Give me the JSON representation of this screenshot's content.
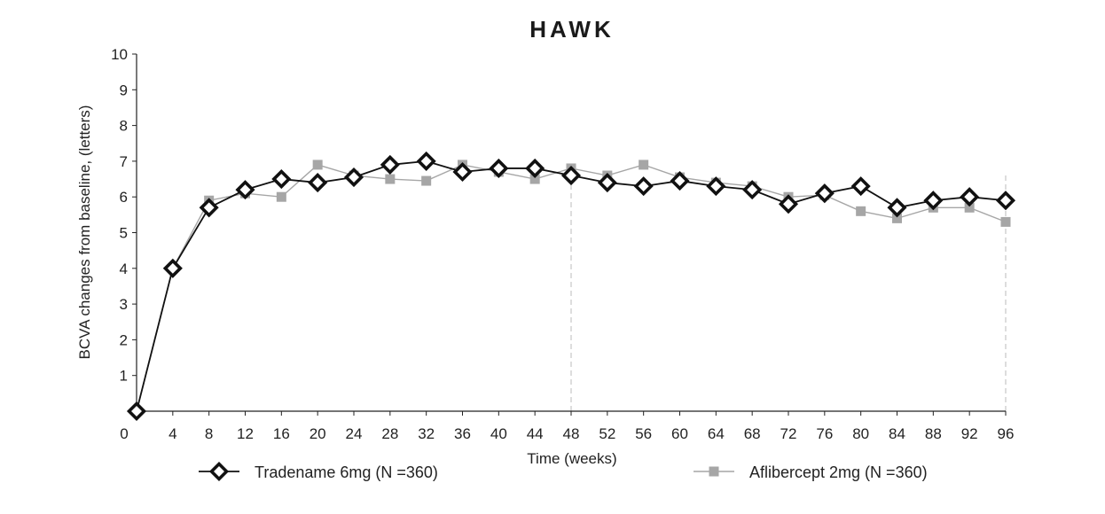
{
  "chart_data": {
    "type": "line",
    "title": "HAWK",
    "xlabel": "Time (weeks)",
    "ylabel": "BCVA changes from baseline, (letters)",
    "x": [
      0,
      4,
      8,
      12,
      16,
      20,
      24,
      28,
      32,
      36,
      40,
      44,
      48,
      52,
      56,
      60,
      64,
      68,
      72,
      76,
      80,
      84,
      88,
      92,
      96
    ],
    "x_ticks": [
      "0",
      "4",
      "8",
      "12",
      "16",
      "20",
      "24",
      "28",
      "32",
      "36",
      "40",
      "44",
      "48",
      "52",
      "56",
      "60",
      "64",
      "68",
      "72",
      "76",
      "80",
      "84",
      "88",
      "92",
      "96"
    ],
    "y_ticks": [
      "1",
      "2",
      "3",
      "4",
      "5",
      "6",
      "7",
      "8",
      "9",
      "10"
    ],
    "xlim": [
      0,
      96
    ],
    "ylim": [
      0,
      10
    ],
    "grid": false,
    "reference_lines_x": [
      48,
      96
    ],
    "legend_position": "bottom",
    "series": [
      {
        "name": "Tradename 6mg (N =360)",
        "marker": "diamond",
        "color": "#111111",
        "values": [
          0,
          4.0,
          5.7,
          6.2,
          6.5,
          6.4,
          6.55,
          6.9,
          7.0,
          6.7,
          6.8,
          6.8,
          6.6,
          6.4,
          6.3,
          6.45,
          6.3,
          6.2,
          5.8,
          6.1,
          6.3,
          5.7,
          5.9,
          6.0,
          5.9
        ]
      },
      {
        "name": "Aflibercept 2mg (N =360)",
        "marker": "square",
        "color": "#a6a6a6",
        "values": [
          0,
          4.0,
          5.9,
          6.1,
          6.0,
          6.9,
          6.6,
          6.5,
          6.45,
          6.9,
          6.7,
          6.5,
          6.8,
          6.6,
          6.9,
          6.55,
          6.4,
          6.3,
          6.0,
          6.05,
          5.6,
          5.4,
          5.7,
          5.7,
          5.3
        ]
      }
    ]
  }
}
